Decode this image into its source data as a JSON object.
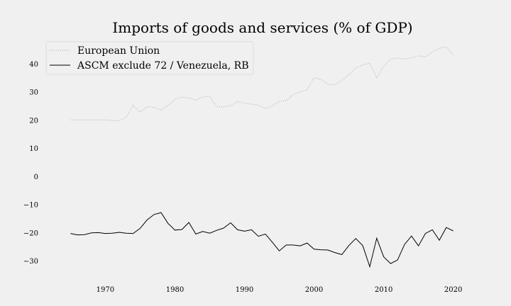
{
  "chart_data": {
    "type": "line",
    "title": "Imports of goods and services (% of GDP)",
    "xlabel": "",
    "ylabel": "",
    "xlim": [
      1962,
      2023
    ],
    "ylim": [
      -36,
      48
    ],
    "x_ticks": [
      1970,
      1980,
      1990,
      2000,
      2010,
      2020
    ],
    "x_tick_labels": [
      "1970",
      "1980",
      "1990",
      "2000",
      "2010",
      "2020"
    ],
    "y_ticks": [
      -30,
      -20,
      -10,
      0,
      10,
      20,
      30,
      40
    ],
    "y_tick_labels": [
      "−30",
      "−20",
      "−10",
      "0",
      "10",
      "20",
      "30",
      "40"
    ],
    "grid": false,
    "legend_position": "top-left",
    "x": [
      1965,
      1966,
      1967,
      1968,
      1969,
      1970,
      1971,
      1972,
      1973,
      1974,
      1975,
      1976,
      1977,
      1978,
      1979,
      1980,
      1981,
      1982,
      1983,
      1984,
      1985,
      1986,
      1987,
      1988,
      1989,
      1990,
      1991,
      1992,
      1993,
      1994,
      1995,
      1996,
      1997,
      1998,
      1999,
      2000,
      2001,
      2002,
      2003,
      2004,
      2005,
      2006,
      2007,
      2008,
      2009,
      2010,
      2011,
      2012,
      2013,
      2014,
      2015,
      2016,
      2017,
      2018,
      2019,
      2020
    ],
    "series": [
      {
        "name": "European Union",
        "color": "#aaaaaa",
        "style": "dotted",
        "values": [
          20.0,
          20.0,
          20.0,
          20.0,
          20.0,
          20.0,
          19.8,
          19.7,
          21.0,
          25.2,
          22.8,
          24.7,
          24.5,
          23.4,
          25.2,
          27.3,
          28.1,
          27.8,
          27.0,
          28.2,
          28.3,
          24.7,
          24.6,
          25.0,
          26.5,
          26.0,
          25.6,
          25.2,
          24.0,
          25.0,
          26.6,
          26.8,
          29.0,
          30.0,
          30.7,
          35.0,
          34.4,
          32.7,
          32.5,
          34.0,
          36.0,
          38.5,
          39.5,
          40.2,
          35.0,
          39.0,
          41.6,
          42.0,
          41.6,
          42.0,
          42.8,
          42.4,
          44.2,
          45.4,
          46.0,
          43.0
        ]
      },
      {
        "name": "ASCM exclude 72 / Venezuela, RB",
        "color": "#000000",
        "style": "solid",
        "values": [
          -20.3,
          -20.8,
          -20.7,
          -20.1,
          -20.0,
          -20.3,
          -20.2,
          -19.9,
          -20.2,
          -20.3,
          -18.5,
          -15.5,
          -13.6,
          -12.9,
          -16.7,
          -19.1,
          -18.9,
          -16.4,
          -20.5,
          -19.6,
          -20.2,
          -19.2,
          -18.4,
          -16.5,
          -19.0,
          -19.5,
          -19.0,
          -21.3,
          -20.5,
          -23.4,
          -26.5,
          -24.4,
          -24.4,
          -24.7,
          -23.7,
          -25.9,
          -26.1,
          -26.2,
          -27.1,
          -27.8,
          -24.6,
          -22.1,
          -24.6,
          -32.1,
          -22.0,
          -28.6,
          -31.0,
          -29.7,
          -24.2,
          -21.2,
          -24.7,
          -20.3,
          -19.0,
          -22.7,
          -18.2,
          -19.4
        ]
      }
    ]
  }
}
